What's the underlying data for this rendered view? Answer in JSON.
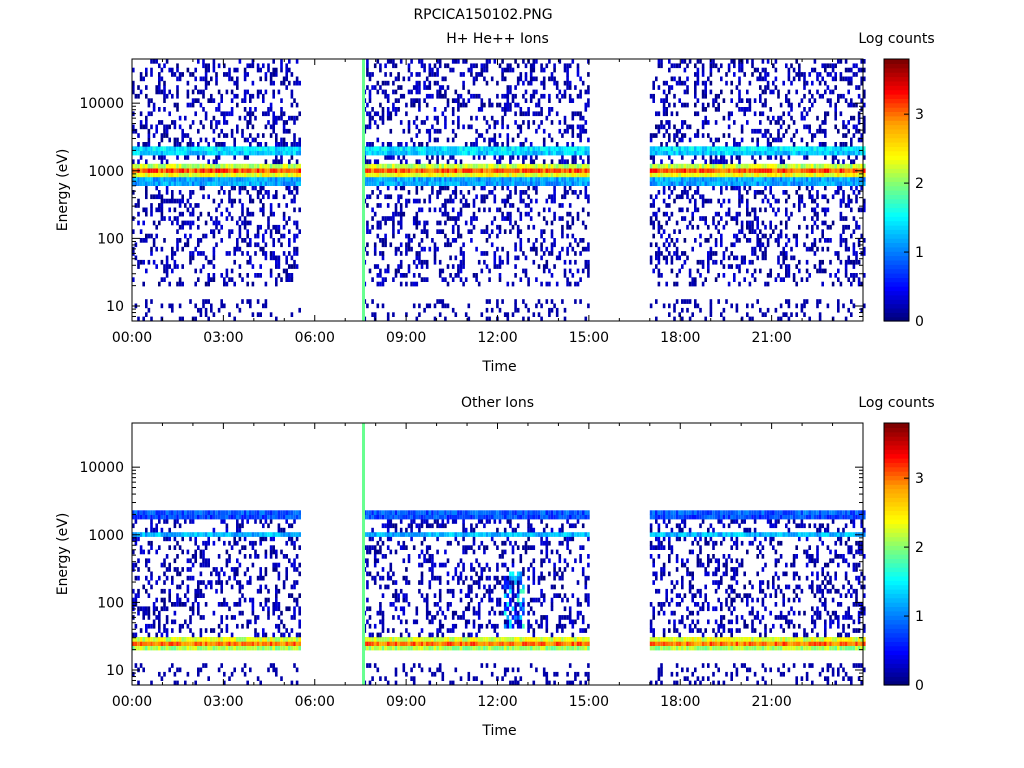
{
  "figure_title": "RPCICA150102.PNG",
  "colorscale": [
    [
      0.0,
      "#00007f"
    ],
    [
      0.12,
      "#0000ff"
    ],
    [
      0.3,
      "#00a2ff"
    ],
    [
      0.4,
      "#00ffff"
    ],
    [
      0.52,
      "#7dff7a"
    ],
    [
      0.63,
      "#ffff00"
    ],
    [
      0.76,
      "#ff9f00"
    ],
    [
      0.88,
      "#ff0000"
    ],
    [
      1.0,
      "#7f0000"
    ]
  ],
  "chart_data": [
    {
      "type": "heatmap",
      "title": "H+ He++ Ions",
      "xlabel": "Time",
      "ylabel": "Energy (eV)",
      "x_unit": "hours",
      "xlim": [
        0,
        24
      ],
      "x_tick_values": [
        0,
        3,
        6,
        9,
        12,
        15,
        18,
        21
      ],
      "x_tick_labels": [
        "00:00",
        "03:00",
        "06:00",
        "09:00",
        "12:00",
        "15:00",
        "18:00",
        "21:00"
      ],
      "y_scale": "log",
      "ylim": [
        6,
        45000
      ],
      "y_tick_values": [
        10,
        100,
        1000,
        10000
      ],
      "y_tick_labels": [
        "10",
        "100",
        "1000",
        "10000"
      ],
      "colorbar": {
        "label": "Log counts",
        "range": [
          0,
          3.8
        ],
        "tick_values": [
          0,
          1,
          2,
          3
        ],
        "tick_labels": [
          "0",
          "1",
          "2",
          "3"
        ]
      },
      "data_intervals": [
        [
          0,
          5.5
        ],
        [
          7.6,
          15.0
        ],
        [
          17.0,
          24
        ]
      ],
      "spike": {
        "time": 7.55,
        "log_counts": 1.9
      },
      "bands": [
        {
          "energy": 1000,
          "log_counts": 3.2,
          "width_decades": 0.1
        },
        {
          "energy": 2000,
          "log_counts": 1.8,
          "width_decades": 0.06
        },
        {
          "energy": 700,
          "log_counts": 1.6,
          "width_decades": 0.05
        }
      ],
      "background_energy": [
        20,
        45000
      ],
      "low_energy_columns": [
        6,
        12
      ]
    },
    {
      "type": "heatmap",
      "title": "Other Ions",
      "xlabel": "Time",
      "ylabel": "Energy (eV)",
      "x_unit": "hours",
      "xlim": [
        0,
        24
      ],
      "x_tick_values": [
        0,
        3,
        6,
        9,
        12,
        15,
        18,
        21
      ],
      "x_tick_labels": [
        "00:00",
        "03:00",
        "06:00",
        "09:00",
        "12:00",
        "15:00",
        "18:00",
        "21:00"
      ],
      "y_scale": "log",
      "ylim": [
        6,
        45000
      ],
      "y_tick_values": [
        10,
        100,
        1000,
        10000
      ],
      "y_tick_labels": [
        "10",
        "100",
        "1000",
        "10000"
      ],
      "colorbar": {
        "label": "Log counts",
        "range": [
          0,
          3.8
        ],
        "tick_values": [
          0,
          1,
          2,
          3
        ],
        "tick_labels": [
          "0",
          "1",
          "2",
          "3"
        ]
      },
      "data_intervals": [
        [
          0,
          5.5
        ],
        [
          7.6,
          15.0
        ],
        [
          17.0,
          24
        ]
      ],
      "spike": {
        "time": 7.55,
        "log_counts": 1.9
      },
      "bands": [
        {
          "energy": 25,
          "log_counts": 3.1,
          "width_decades": 0.1
        },
        {
          "energy": 1000,
          "log_counts": 1.3,
          "width_decades": 0.05
        },
        {
          "energy": 2000,
          "log_counts": 1.1,
          "width_decades": 0.05
        }
      ],
      "background_energy": [
        30,
        2000
      ],
      "low_energy_columns": [
        6,
        12
      ],
      "bursts": [
        {
          "time": 12.5,
          "energy_range": [
            40,
            300
          ],
          "log_counts": 1.8
        }
      ]
    }
  ]
}
